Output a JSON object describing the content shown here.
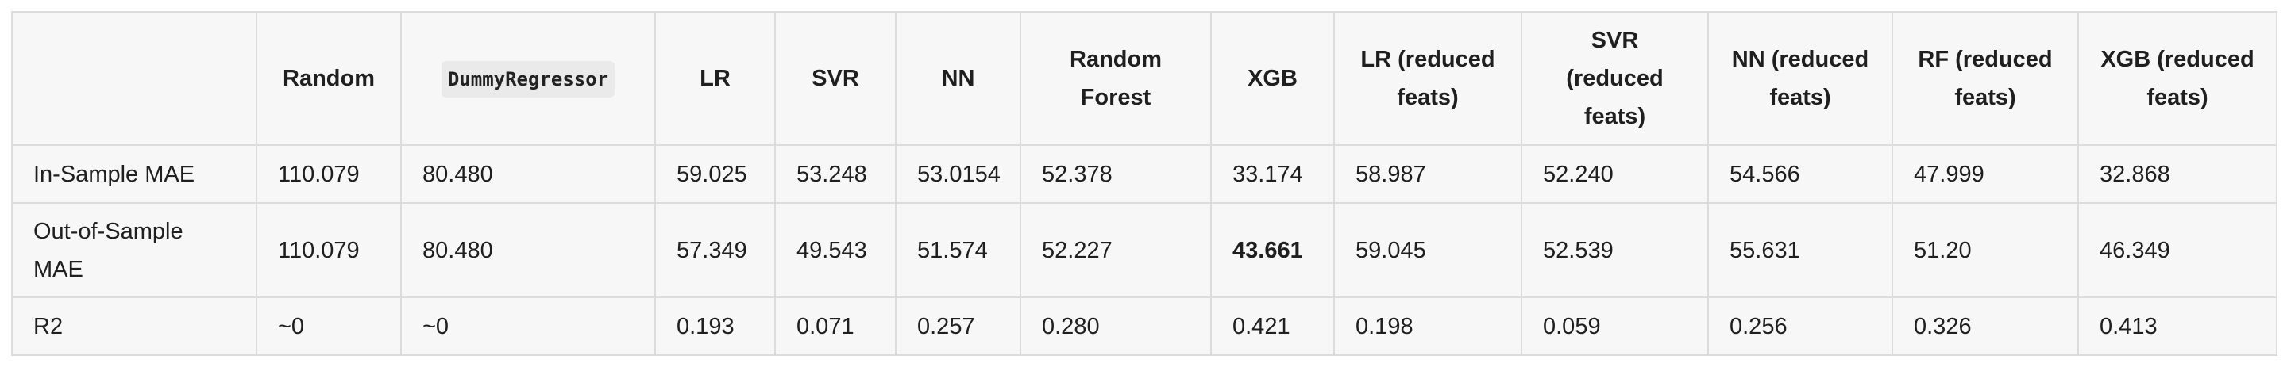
{
  "table": {
    "headers": [
      "",
      "Random",
      "DummyRegressor",
      "LR",
      "SVR",
      "NN",
      "Random Forest",
      "XGB",
      "LR (reduced feats)",
      "SVR (reduced feats)",
      "NN (reduced feats)",
      "RF (reduced feats)",
      "XGB (reduced feats)"
    ],
    "rows": [
      {
        "label": "In-Sample MAE",
        "values": [
          "110.079",
          "80.480",
          "59.025",
          "53.248",
          "53.0154",
          "52.378",
          "33.174",
          "58.987",
          "52.240",
          "54.566",
          "47.999",
          "32.868"
        ]
      },
      {
        "label": "Out-of-Sample MAE",
        "values": [
          "110.079",
          "80.480",
          "57.349",
          "49.543",
          "51.574",
          "52.227",
          "43.661",
          "59.045",
          "52.539",
          "55.631",
          "51.20",
          "46.349"
        ]
      },
      {
        "label": "R2",
        "values": [
          "~0",
          "~0",
          "0.193",
          "0.071",
          "0.257",
          "0.280",
          "0.421",
          "0.198",
          "0.059",
          "0.256",
          "0.326",
          "0.413"
        ]
      }
    ]
  }
}
